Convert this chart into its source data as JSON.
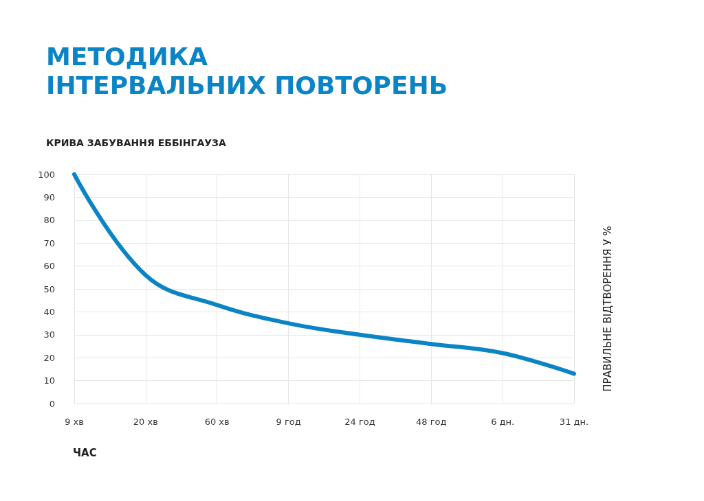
{
  "chart_data": {
    "type": "line",
    "title": "МЕТОДИКА\nІНТЕРВАЛЬНИХ ПОВТОРЕНЬ",
    "subtitle": "КРИВА ЗАБУВАННЯ ЕББІНГАУЗА",
    "xlabel": "ЧАС",
    "ylabel": "ПРАВИЛЬНЕ ВІДТВОРЕННЯ У %",
    "categories": [
      "9 хв",
      "20 хв",
      "60 хв",
      "9 год",
      "24 год",
      "48 год",
      "6 дн.",
      "31 дн."
    ],
    "series": [
      {
        "color": "#0b84c6",
        "values": [
          100,
          56,
          43,
          35,
          30,
          26,
          22,
          13
        ]
      }
    ],
    "ylim": [
      0,
      100
    ],
    "yticks": [
      0,
      10,
      20,
      30,
      40,
      50,
      60,
      70,
      80,
      90,
      100
    ],
    "grid": true,
    "marker": "none",
    "line_style": "solid"
  }
}
